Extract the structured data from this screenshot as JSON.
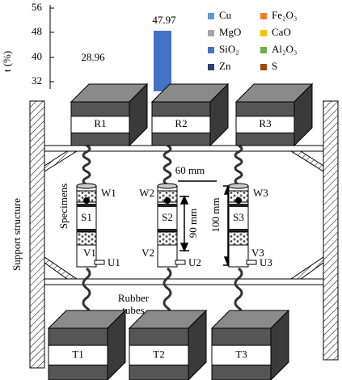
{
  "chart_fragment": {
    "axis_label": "t (%)",
    "ticks": [
      "56",
      "48",
      "40",
      "32"
    ],
    "bar_labels": [
      "28.96",
      "47.97"
    ],
    "legend": [
      "Cu",
      "Fe₂O₃",
      "MgO",
      "CaO",
      "SiO₂",
      "Al₂O₃",
      "Zn",
      "S"
    ]
  },
  "reservoirs_top": [
    "R1",
    "R2",
    "R3"
  ],
  "reservoirs_bottom": [
    "T1",
    "T2",
    "T3"
  ],
  "specimens": [
    {
      "top": "W1",
      "body": "S1",
      "bottom": "V1",
      "outlet": "U1"
    },
    {
      "top": "W2",
      "body": "S2",
      "bottom": "V2",
      "outlet": "U2"
    },
    {
      "top": "W3",
      "body": "S3",
      "bottom": "V3",
      "outlet": "U3"
    }
  ],
  "dimensions": [
    "60 mm",
    "90 mm",
    "100 mm"
  ],
  "labels": {
    "specimens": "Specimens",
    "tubes_1": "Rubber",
    "tubes_2": "tubes",
    "support": "Support structure"
  }
}
